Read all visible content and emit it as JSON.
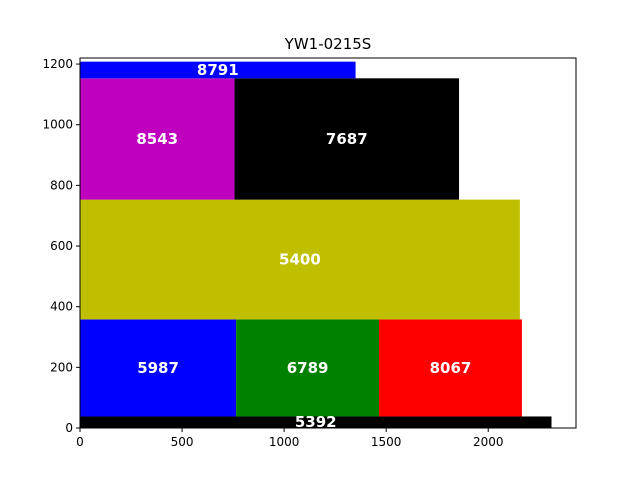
{
  "chart_data": {
    "type": "bar",
    "title": "YW1-0215S",
    "xlabel": "",
    "ylabel": "",
    "xlim": [
      0,
      2430
    ],
    "ylim": [
      0,
      1220
    ],
    "xticks": [
      0,
      500,
      1000,
      1500,
      2000
    ],
    "yticks": [
      0,
      200,
      400,
      600,
      800,
      1000,
      1200
    ],
    "grid": false,
    "rectangles": [
      {
        "label": "5392",
        "x": 0,
        "y": 0,
        "width": 2310,
        "height": 38,
        "color": "#000000"
      },
      {
        "label": "5987",
        "x": 0,
        "y": 38,
        "width": 765,
        "height": 320,
        "color": "#0000ff"
      },
      {
        "label": "6789",
        "x": 765,
        "y": 38,
        "width": 700,
        "height": 320,
        "color": "#008000"
      },
      {
        "label": "8067",
        "x": 1465,
        "y": 38,
        "width": 700,
        "height": 320,
        "color": "#ff0000"
      },
      {
        "label": "5400",
        "x": 0,
        "y": 358,
        "width": 2155,
        "height": 395,
        "color": "#bfbf00"
      },
      {
        "label": "8543",
        "x": 0,
        "y": 753,
        "width": 757,
        "height": 400,
        "color": "#bf00bf"
      },
      {
        "label": "7687",
        "x": 757,
        "y": 753,
        "width": 1100,
        "height": 400,
        "color": "#000000"
      },
      {
        "label": "8791",
        "x": 0,
        "y": 1153,
        "width": 1350,
        "height": 55,
        "color": "#0000ff"
      }
    ]
  }
}
